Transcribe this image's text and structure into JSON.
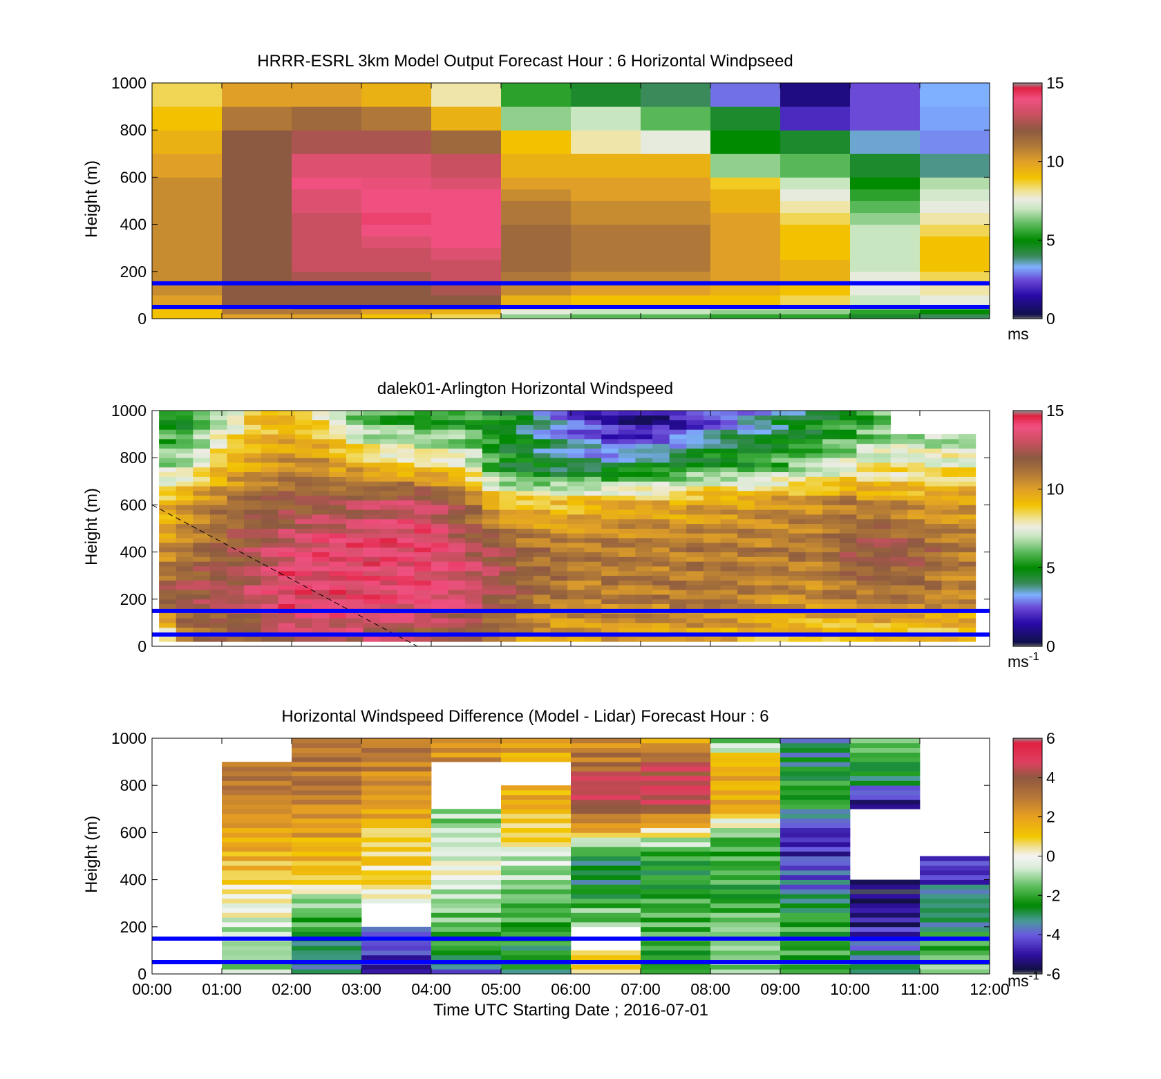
{
  "chart_data": [
    {
      "type": "heatmap",
      "title": "HRRR-ESRL 3km Model Output   Forecast Hour : 6 Horizontal Windpseed",
      "ylabel": "Height (m)",
      "ylim": [
        0,
        1000
      ],
      "xlim": [
        0,
        12
      ],
      "yticks": [
        "0",
        "200",
        "400",
        "600",
        "800",
        "1000"
      ],
      "xticks": [],
      "colorbar": {
        "min": 0,
        "max": 15,
        "ticks": [
          "0",
          "5",
          "10",
          "15"
        ],
        "unit": "ms",
        "unit_sup": "",
        "colormap": "speed"
      },
      "reference_lines_m": [
        50,
        150
      ],
      "x_bins_hours": [
        0,
        1,
        2,
        3,
        4,
        5,
        6,
        7,
        8,
        9,
        10,
        11,
        12
      ],
      "y_bins_m": [
        0,
        20,
        40,
        60,
        100,
        150,
        200,
        250,
        300,
        350,
        400,
        450,
        500,
        550,
        600,
        700,
        800,
        900,
        1000
      ],
      "values": [
        [
          9,
          9,
          10,
          10,
          10.5,
          10.5,
          10.5,
          10.5,
          10.5,
          10.5,
          10.5,
          10.5,
          10.5,
          10.5,
          10,
          9.5,
          9,
          8.5
        ],
        [
          10,
          11,
          11,
          12,
          12,
          12,
          12,
          12,
          12,
          12,
          12,
          12,
          12,
          12,
          12,
          12,
          11,
          10
        ],
        [
          10,
          11,
          11.5,
          12,
          12,
          12.5,
          13,
          13,
          13,
          13,
          13,
          13.5,
          13.5,
          14,
          13.5,
          12.5,
          11.5,
          10
        ],
        [
          9,
          10,
          11,
          12,
          12,
          12.5,
          13,
          13,
          13.5,
          14,
          14.2,
          14,
          14,
          13.8,
          13.5,
          12.5,
          11,
          9.5
        ],
        [
          8.5,
          9.5,
          11,
          12,
          12.5,
          13,
          13,
          13.5,
          14,
          14,
          14,
          14,
          14,
          13.5,
          13,
          11.5,
          9.5,
          8
        ],
        [
          6.5,
          7.5,
          8.5,
          9.5,
          10.5,
          11,
          11.5,
          11.5,
          11.5,
          11.5,
          11,
          11,
          10.5,
          10,
          9.5,
          9,
          6.5,
          5.5
        ],
        [
          6,
          7,
          8,
          9,
          10,
          10.5,
          11,
          11,
          11,
          11,
          10.5,
          10.5,
          10,
          10,
          9.5,
          8,
          7,
          4.5
        ],
        [
          6,
          7,
          8,
          9,
          10,
          10.5,
          11,
          11,
          11,
          11,
          10.5,
          10.5,
          10,
          10,
          9.5,
          7.5,
          6,
          4
        ],
        [
          5.5,
          6.5,
          8,
          9,
          9.5,
          10,
          10,
          10,
          10,
          10,
          10,
          9.5,
          9.5,
          8.8,
          6.5,
          5,
          4.5,
          2.8
        ],
        [
          5.5,
          6.5,
          8,
          8.5,
          9,
          9.5,
          9.5,
          9,
          9,
          9,
          8.5,
          8,
          7.5,
          7,
          6,
          4.5,
          2,
          1
        ],
        [
          4.5,
          5.5,
          6.5,
          7,
          7.5,
          7.5,
          7,
          7,
          7,
          7,
          6.5,
          6,
          5.5,
          5,
          4.5,
          3.5,
          2.5,
          2.5
        ],
        [
          4,
          5,
          6,
          7.5,
          8,
          8.5,
          9,
          9,
          9,
          8.5,
          8,
          7.5,
          7.2,
          6.8,
          3.8,
          3,
          3.2,
          3.3
        ]
      ]
    },
    {
      "type": "heatmap",
      "title": "dalek01-Arlington  Horizontal Windspeed",
      "ylabel": "Height (m)",
      "ylim": [
        0,
        1000
      ],
      "xlim": [
        0,
        12
      ],
      "yticks": [
        "0",
        "200",
        "400",
        "600",
        "800",
        "1000"
      ],
      "xticks": [],
      "colorbar": {
        "min": 0,
        "max": 15,
        "ticks": [
          "0",
          "5",
          "10",
          "15"
        ],
        "unit": "ms",
        "unit_sup": "-1",
        "colormap": "speed"
      },
      "reference_lines_m": [
        50,
        150
      ],
      "profiles": [
        {
          "t": 0.0,
          "v": [
            5.5,
            12,
            10,
            9,
            7,
            5
          ]
        },
        {
          "t": 0.5,
          "v": [
            11,
            12.5,
            11,
            10,
            7,
            5
          ]
        },
        {
          "t": 1.0,
          "v": [
            11.5,
            12.5,
            12,
            11,
            9,
            7
          ]
        },
        {
          "t": 1.5,
          "v": [
            12,
            13,
            12.5,
            11.5,
            10,
            9
          ]
        },
        {
          "t": 2.0,
          "v": [
            13,
            14.5,
            13.5,
            12,
            10.5,
            9
          ]
        },
        {
          "t": 2.5,
          "v": [
            13,
            14.5,
            14,
            12,
            10.5,
            8
          ]
        },
        {
          "t": 3.0,
          "v": [
            13,
            14,
            14,
            12.5,
            9.5,
            6
          ]
        },
        {
          "t": 3.5,
          "v": [
            12.5,
            14,
            14,
            13,
            9,
            5.5
          ]
        },
        {
          "t": 4.0,
          "v": [
            12,
            14,
            14,
            13,
            9,
            5
          ]
        },
        {
          "t": 4.5,
          "v": [
            12,
            13.5,
            13,
            11.5,
            8,
            5.5
          ]
        },
        {
          "t": 5.0,
          "v": [
            11,
            12.5,
            12,
            9,
            5,
            5
          ]
        },
        {
          "t": 5.5,
          "v": [
            10,
            11.5,
            11.5,
            9,
            4.5,
            4
          ]
        },
        {
          "t": 6.0,
          "v": [
            10,
            11,
            11,
            9,
            4,
            2.5
          ]
        },
        {
          "t": 6.5,
          "v": [
            10,
            11,
            11,
            9.5,
            4,
            1.5
          ]
        },
        {
          "t": 7.0,
          "v": [
            10,
            11,
            11,
            9.5,
            4.5,
            1
          ]
        },
        {
          "t": 7.5,
          "v": [
            10,
            11,
            11,
            9.5,
            5,
            1.5
          ]
        },
        {
          "t": 8.0,
          "v": [
            10,
            11,
            11,
            10,
            5.5,
            2.5
          ]
        },
        {
          "t": 8.5,
          "v": [
            9.5,
            11,
            11,
            10,
            5.5,
            3
          ]
        },
        {
          "t": 9.0,
          "v": [
            9,
            10.5,
            11,
            10.5,
            6,
            4
          ]
        },
        {
          "t": 9.5,
          "v": [
            9,
            10.5,
            11,
            10.5,
            6.5,
            4.5
          ]
        },
        {
          "t": 10.0,
          "v": [
            9,
            11,
            12,
            11,
            7.5,
            5
          ]
        },
        {
          "t": 10.5,
          "v": [
            9,
            11,
            12.5,
            10.5,
            8,
            6
          ]
        },
        {
          "t": 11.0,
          "v": [
            9,
            11,
            12,
            10,
            8,
            6
          ]
        },
        {
          "t": 11.5,
          "v": [
            9,
            10.5,
            11,
            10,
            8,
            6
          ]
        },
        {
          "t": 12.0,
          "v": [
            9,
            10.5,
            11,
            10,
            8,
            6
          ]
        }
      ],
      "profile_heights_m": [
        50,
        200,
        400,
        600,
        750,
        950
      ]
    },
    {
      "type": "heatmap",
      "title": "Horizontal Windspeed Difference (Model - Lidar) Forecast Hour : 6",
      "xlabel": "Time UTC  Starting Date ; 2016-07-01",
      "ylabel": "Height (m)",
      "ylim": [
        0,
        1000
      ],
      "xlim": [
        0,
        12
      ],
      "yticks": [
        "0",
        "200",
        "400",
        "600",
        "800",
        "1000"
      ],
      "xticks": [
        "00:00",
        "01:00",
        "02:00",
        "03:00",
        "04:00",
        "05:00",
        "06:00",
        "07:00",
        "08:00",
        "09:00",
        "10:00",
        "11:00",
        "12:00"
      ],
      "colorbar": {
        "min": -6,
        "max": 6,
        "ticks": [
          "-6",
          "-4",
          "-2",
          "0",
          "2",
          "4",
          "6"
        ],
        "unit": "ms",
        "unit_sup": "-1",
        "colormap": "diff"
      },
      "reference_lines_m": [
        50,
        150
      ],
      "profile_heights_m": [
        0,
        100,
        200,
        300,
        400,
        500,
        600,
        700,
        800,
        900,
        1000
      ],
      "hours": [
        {
          "h": 0,
          "v": [
            null,
            null,
            null,
            null,
            null,
            null,
            null,
            null,
            null,
            null,
            null
          ]
        },
        {
          "h": 1,
          "v": [
            -1,
            -1,
            -0.5,
            0.5,
            1,
            1.5,
            2,
            2.5,
            3,
            null,
            null
          ]
        },
        {
          "h": 2,
          "v": [
            -3,
            -3,
            -2,
            -1,
            1,
            1.5,
            2,
            2.5,
            3,
            3,
            3
          ]
        },
        {
          "h": 3,
          "v": [
            -5,
            -4,
            null,
            0,
            1,
            0.5,
            1,
            2,
            2.5,
            3,
            3
          ]
        },
        {
          "h": 4,
          "v": [
            -4,
            -2,
            -1.5,
            -1,
            0,
            -0.5,
            -1,
            null,
            null,
            2.5,
            2.5
          ]
        },
        {
          "h": 5,
          "v": [
            -3,
            -2.5,
            -2,
            -1.5,
            -1,
            -0.5,
            1,
            1.5,
            null,
            2,
            1.5
          ]
        },
        {
          "h": 6,
          "v": [
            1,
            null,
            -1,
            -2,
            -3,
            -2.5,
            1.5,
            4.5,
            4.5,
            3,
            2.5
          ]
        },
        {
          "h": 7,
          "v": [
            -2,
            -2,
            -1.5,
            -2,
            -2.5,
            -2,
            0.5,
            4.5,
            5,
            3.5,
            1.5
          ]
        },
        {
          "h": 8,
          "v": [
            -1,
            -1,
            -1.5,
            -2,
            -2,
            -2,
            -1,
            2,
            2,
            1,
            -2
          ]
        },
        {
          "h": 9,
          "v": [
            -2,
            -2,
            -2,
            -3,
            -4,
            -4.5,
            -4.5,
            -2.5,
            -2,
            -3,
            -3
          ]
        },
        {
          "h": 10,
          "v": [
            -3,
            -3.5,
            -5,
            -5.5,
            null,
            null,
            null,
            -5.5,
            -3,
            -2,
            -1
          ]
        },
        {
          "h": 11,
          "v": [
            -1,
            -2,
            -3,
            -3,
            -4.5,
            null,
            null,
            null,
            null,
            null,
            null
          ]
        }
      ]
    }
  ]
}
